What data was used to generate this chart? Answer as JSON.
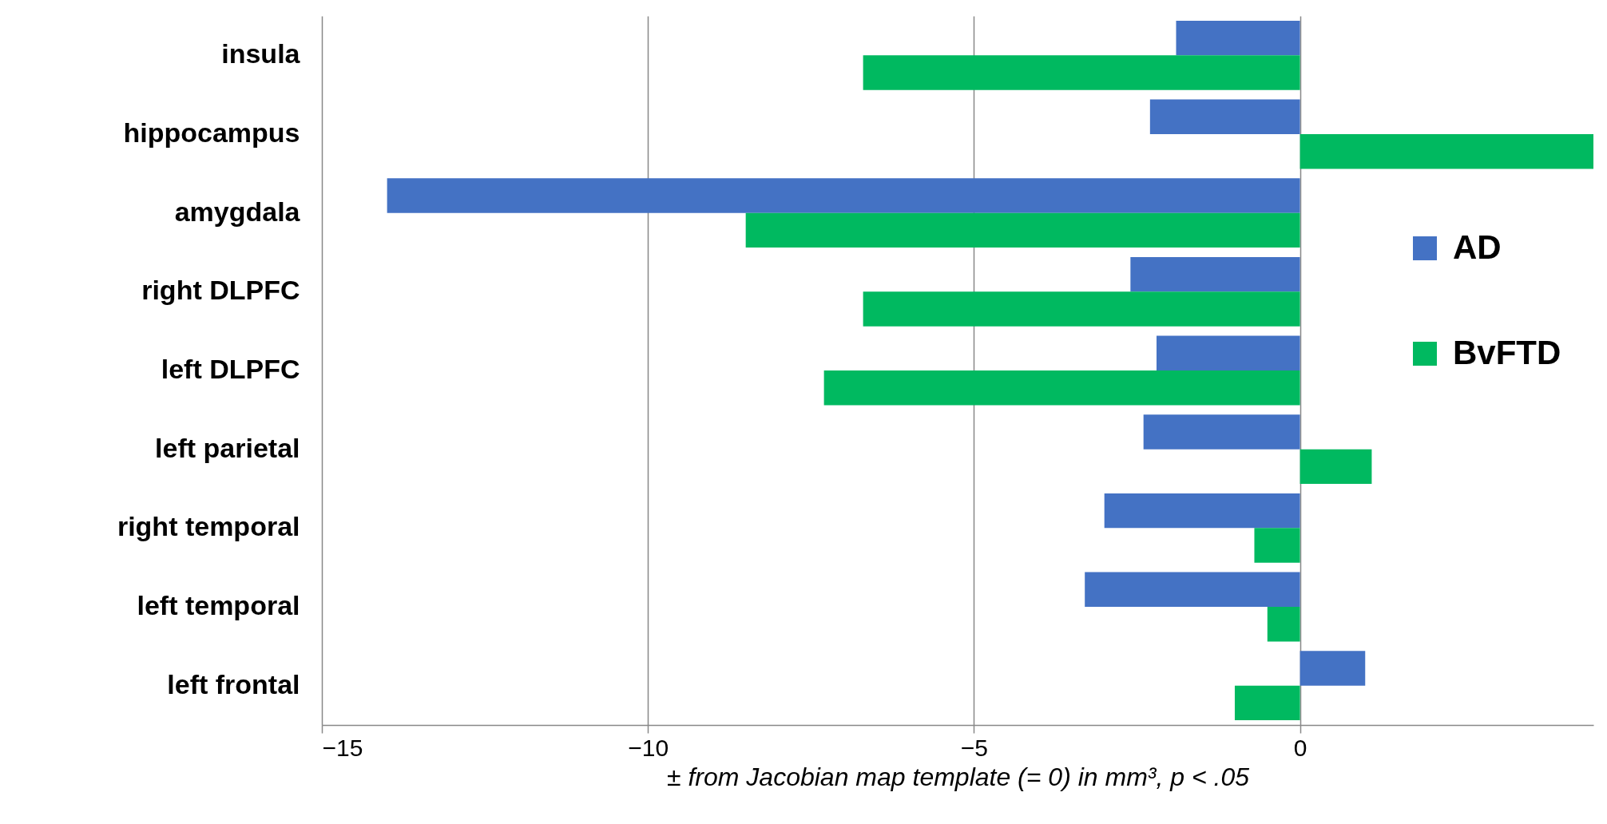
{
  "chart_data": {
    "type": "bar",
    "orientation": "horizontal",
    "xlabel": "± from Jacobian map template (= 0) in mm³, p < .05",
    "categories": [
      "insula",
      "hippocampus",
      "amygdala",
      "right DLPFC",
      "left DLPFC",
      "left parietal",
      "right temporal",
      "left temporal",
      "left frontal"
    ],
    "series": [
      {
        "name": "AD",
        "color": "#4472c4",
        "values": [
          -1.9,
          -2.3,
          -14.0,
          -2.6,
          -2.2,
          -2.4,
          -3.0,
          -3.3,
          1.0
        ]
      },
      {
        "name": "BvFTD",
        "color": "#00b960",
        "values": [
          -6.7,
          4.5,
          -8.5,
          -6.7,
          -7.3,
          1.1,
          -0.7,
          -0.5,
          -1.0
        ]
      }
    ],
    "xlim": [
      -15,
      4.5
    ],
    "xticks": [
      -15,
      -10,
      -5,
      0
    ],
    "grid": "x",
    "legend": "right"
  }
}
